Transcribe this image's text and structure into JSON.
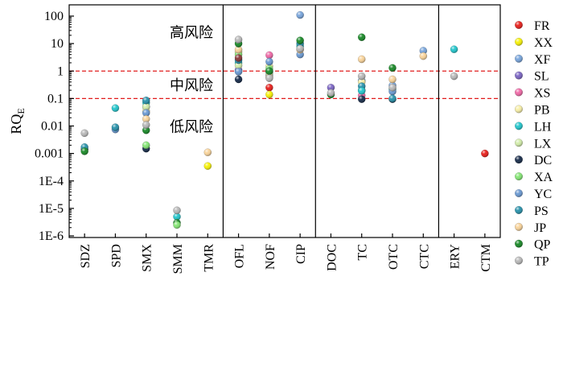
{
  "chart_data": {
    "type": "scatter",
    "ylabel": "RQ",
    "ylabel_sub": "E",
    "y_scale": "log",
    "ylim": [
      1e-06,
      200
    ],
    "y_ticks": [
      {
        "value": 100,
        "label": "100"
      },
      {
        "value": 10,
        "label": "10"
      },
      {
        "value": 1,
        "label": "1"
      },
      {
        "value": 0.1,
        "label": "0.1"
      },
      {
        "value": 0.01,
        "label": "0.01"
      },
      {
        "value": 0.001,
        "label": "0.001"
      },
      {
        "value": 0.0001,
        "label": "1E-4"
      },
      {
        "value": 1e-05,
        "label": "1E-5"
      },
      {
        "value": 1e-06,
        "label": "1E-6"
      }
    ],
    "categories": [
      "SDZ",
      "SPD",
      "SMX",
      "SMM",
      "TMR",
      "OFL",
      "NOF",
      "CIP",
      "DOC",
      "TC",
      "OTC",
      "CTC",
      "ERY",
      "CTM"
    ],
    "group_separators_after": [
      "TMR",
      "CIP",
      "CTC"
    ],
    "threshold_lines": [
      1,
      0.1
    ],
    "zone_labels": [
      {
        "text": "高风险",
        "y": 25
      },
      {
        "text": "中风险",
        "y": 0.3
      },
      {
        "text": "低风险",
        "y": 0.0095
      }
    ],
    "legend_position": "right",
    "series": [
      {
        "name": "FR",
        "color": "#e8231f",
        "values": {
          "NOF": 0.25,
          "CTM": 0.001
        }
      },
      {
        "name": "XX",
        "color": "#f7f20a",
        "values": {
          "NOF": 0.14
        }
      },
      {
        "name": "XF",
        "color": "#7aa6dc",
        "values": {
          "SMX": 0.05,
          "OFL": 1.0,
          "NOF": 0.7,
          "CIP": 110,
          "TC": 0.45,
          "OTC": 0.3,
          "CTC": 5.5
        }
      },
      {
        "name": "SL",
        "color": "#7d67c4",
        "values": {
          "OFL": 1.1,
          "NOF": 0.9,
          "DOC": 0.25
        }
      },
      {
        "name": "XS",
        "color": "#f06ba8",
        "values": {
          "NOF": 3.8,
          "TC": 0.13
        }
      },
      {
        "name": "PB",
        "color": "#f7efa8",
        "values": {
          "SMX": 0.035,
          "OFL": 5.0,
          "NOF": 1.5,
          "TC": 0.4
        }
      },
      {
        "name": "LH",
        "color": "#25c6cc",
        "values": {
          "SMX": 0.07,
          "SMM": 5e-06,
          "OFL": 2.0,
          "CIP": 8.0,
          "TC": 0.2,
          "OTC": 0.22,
          "ERY": 6.2
        }
      },
      {
        "name": "LX",
        "color": "#d2ecaa",
        "values": {
          "SMX": 0.05,
          "OFL": 1.6,
          "NOF": 0.85
        }
      },
      {
        "name": "DC",
        "color": "#1a2e4c",
        "values": {
          "SDZ": 0.0014,
          "SMX": 0.0015,
          "OFL": 0.5,
          "TC": 0.095,
          "OTC": 0.095
        }
      },
      {
        "name": "XA",
        "color": "#86e676",
        "values": {
          "SMX": 0.002,
          "OFL": 4.0,
          "NOF": 1.2
        }
      },
      {
        "name": "YC",
        "color": "#6c9ad2",
        "values": {
          "SPD": 0.0075,
          "SMX": 0.03,
          "OFL": 0.95,
          "NOF": 2.2,
          "CIP": 4.0,
          "OTC": 0.18
        }
      },
      {
        "name": "PS",
        "color": "#2b93ac",
        "values": {
          "SDZ": 0.0017,
          "SPD": 0.009,
          "SMX": 0.085,
          "OFL": 2.5,
          "NOF": 1.0,
          "CIP": 10.0,
          "TC": 0.28,
          "OTC": 0.1
        }
      },
      {
        "name": "JP",
        "color": "#f9d49b",
        "values": {
          "SMX": 0.018,
          "TMR": 0.0011,
          "OFL": 6.0,
          "NOF": 0.6,
          "CIP": 6.0,
          "TC": 2.7,
          "OTC": 0.5,
          "CTC": 3.5
        }
      },
      {
        "name": "QP",
        "color": "#1c8a2a",
        "values": {
          "SDZ": 0.0012,
          "SMX": 0.007,
          "SMM": 3e-06,
          "OFL": 10.0,
          "NOF": 1.0,
          "CIP": 13.0,
          "DOC": 0.14,
          "TC": 17.0,
          "OTC": 1.3
        }
      },
      {
        "name": "TP",
        "color": "#b9b9b9",
        "values": {
          "SDZ": 0.0055,
          "SMX": 0.011,
          "SMM": 8.5e-06,
          "OFL": 14.0,
          "NOF": 0.55,
          "CIP": 6.5,
          "DOC": 0.16,
          "TC": 0.65,
          "OTC": 0.25,
          "ERY": 0.65
        }
      }
    ],
    "extra_points": [
      {
        "x": "SPD",
        "y": 0.045,
        "color": "#25c6cc"
      },
      {
        "x": "SMM",
        "y": 2.5e-06,
        "color": "#86e676"
      },
      {
        "x": "TMR",
        "y": 0.00035,
        "color": "#f7f20a"
      },
      {
        "x": "OFL",
        "y": 3.0,
        "color": "#8b3a3a"
      },
      {
        "x": "TC",
        "y": 0.19,
        "color": "#25c6cc"
      }
    ]
  }
}
